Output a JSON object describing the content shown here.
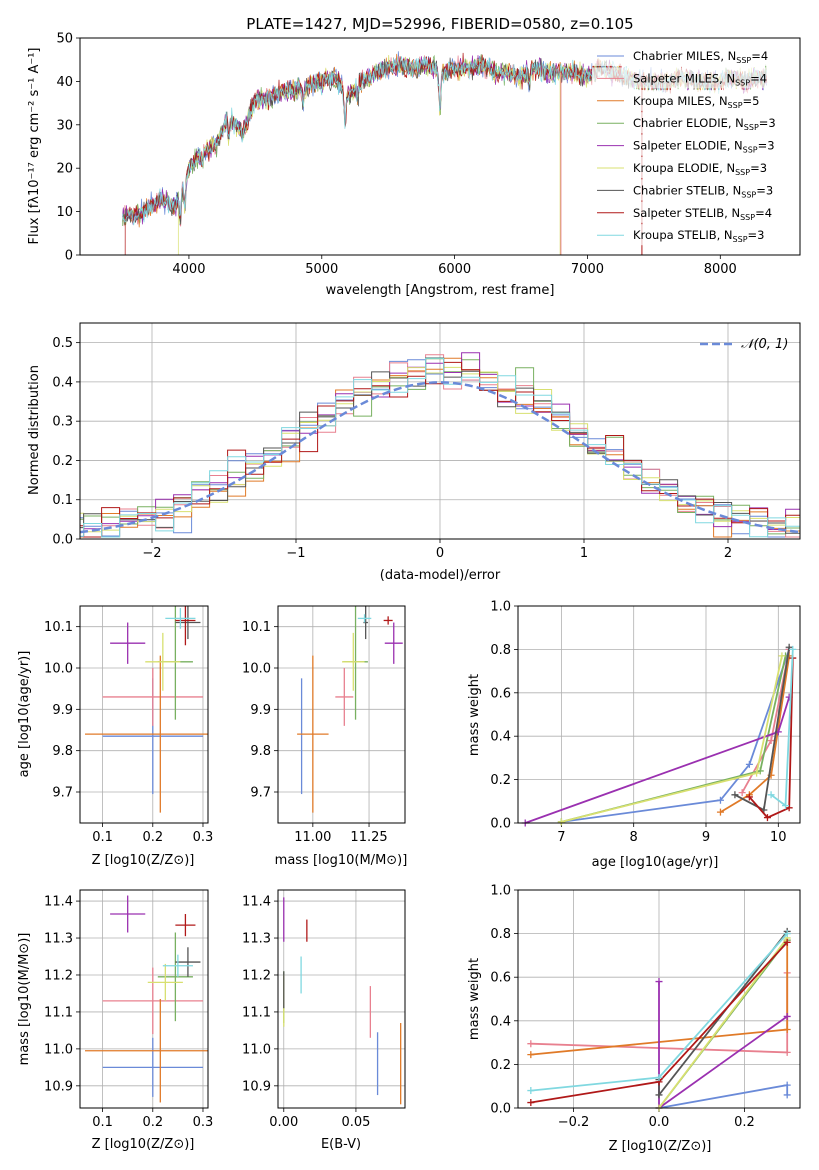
{
  "colors": {
    "Chabrier MILES": "#6a8ad8",
    "Salpeter MILES": "#e8808f",
    "Kroupa MILES": "#e07a28",
    "Chabrier ELODIE": "#78b060",
    "Salpeter ELODIE": "#9a30b0",
    "Kroupa ELODIE": "#d8e070",
    "Chabrier STELIB": "#555555",
    "Salpeter STELIB": "#b01818",
    "Kroupa STELIB": "#80d8e0"
  },
  "chart_data": [
    {
      "id": "spectrum",
      "type": "line",
      "title": "PLATE=1427, MJD=52996, FIBERID=0580, z=0.105",
      "xlabel": "wavelength [Angstrom, rest frame]",
      "ylabel": "Flux [fλ10⁻¹⁷ erg cm⁻² s⁻¹ A⁻¹]",
      "xlim": [
        3180,
        8600
      ],
      "ylim": [
        0,
        50
      ],
      "xticks": [
        4000,
        5000,
        6000,
        7000,
        8000
      ],
      "yticks": [
        0,
        10,
        20,
        30,
        40,
        50
      ],
      "legend": [
        {
          "name": "Chabrier MILES",
          "nssp": "4"
        },
        {
          "name": "Salpeter MILES",
          "nssp": "4"
        },
        {
          "name": "Kroupa MILES",
          "nssp": "5"
        },
        {
          "name": "Chabrier ELODIE",
          "nssp": "3"
        },
        {
          "name": "Salpeter ELODIE",
          "nssp": "3"
        },
        {
          "name": "Kroupa ELODIE",
          "nssp": "3"
        },
        {
          "name": "Chabrier STELIB",
          "nssp": "3"
        },
        {
          "name": "Salpeter STELIB",
          "nssp": "4"
        },
        {
          "name": "Kroupa STELIB",
          "nssp": "3"
        }
      ],
      "legend_placement": "right",
      "data_envelope": {
        "x": [
          3500,
          3600,
          3700,
          3800,
          3900,
          4000,
          4100,
          4200,
          4300,
          4400,
          4500,
          4600,
          4700,
          4800,
          4900,
          5000,
          5100,
          5200,
          5300,
          5400,
          5500,
          5600,
          5700,
          5800,
          5900,
          6000,
          6100,
          6200,
          6300,
          6400,
          6500,
          6600,
          6700,
          6800,
          6900,
          7000,
          7100,
          7200,
          7300,
          7400,
          7500,
          7600,
          7700,
          7800,
          7900,
          8000,
          8100,
          8200,
          8300
        ],
        "y": [
          9,
          9,
          11,
          13,
          11,
          20,
          24,
          25,
          32,
          28,
          36,
          36,
          38,
          38,
          39,
          40,
          41,
          37,
          40,
          42,
          43,
          44,
          43,
          44,
          42,
          43,
          43,
          44,
          42,
          42,
          41,
          43,
          42,
          42,
          42,
          41,
          43,
          42,
          41,
          40,
          40,
          40,
          41,
          40,
          40,
          40,
          41,
          40,
          41
        ]
      }
    },
    {
      "id": "residuals",
      "type": "step",
      "xlabel": "(data-model)/error",
      "ylabel": "Normed distribution",
      "xlim": [
        -2.5,
        2.5
      ],
      "ylim": [
        0,
        0.55
      ],
      "xticks": [
        -2,
        -1,
        0,
        1,
        2
      ],
      "yticks": [
        0.0,
        0.1,
        0.2,
        0.3,
        0.4,
        0.5
      ],
      "legend": "𝒩(0, 1)",
      "legend_placement": "top-right",
      "grid": true
    },
    {
      "id": "age_vs_Z",
      "type": "errorbar",
      "xlabel": "Z [log10(Z/Z⊙)]",
      "ylabel": "age [log10(age/yr)]",
      "xlim": [
        0.055,
        0.31
      ],
      "ylim": [
        9.625,
        10.15
      ],
      "xticks": [
        0.1,
        0.2,
        0.3
      ],
      "yticks": [
        9.7,
        9.8,
        9.9,
        10.0,
        10.1
      ],
      "points": [
        {
          "model": "Chabrier MILES",
          "x": 0.2,
          "xerr": 0.1,
          "y": 9.835,
          "yerr": 0.14
        },
        {
          "model": "Salpeter MILES",
          "x": 0.2,
          "xerr": 0.1,
          "y": 9.93,
          "yerr": 0.07
        },
        {
          "model": "Kroupa MILES",
          "x": 0.215,
          "xerr": 0.15,
          "y": 9.84,
          "yerr": 0.19
        },
        {
          "model": "Chabrier ELODIE",
          "x": 0.245,
          "xerr": 0.035,
          "y": 10.015,
          "yerr": 0.14
        },
        {
          "model": "Salpeter ELODIE",
          "x": 0.15,
          "xerr": 0.035,
          "y": 10.06,
          "yerr": 0.05
        },
        {
          "model": "Kroupa ELODIE",
          "x": 0.22,
          "xerr": 0.035,
          "y": 10.015,
          "yerr": 0.07
        },
        {
          "model": "Chabrier STELIB",
          "x": 0.27,
          "xerr": 0.025,
          "y": 10.11,
          "yerr": 0.04
        },
        {
          "model": "Salpeter STELIB",
          "x": 0.265,
          "xerr": 0.02,
          "y": 10.115,
          "yerr": 0.06
        },
        {
          "model": "Kroupa STELIB",
          "x": 0.255,
          "xerr": 0.03,
          "y": 10.12,
          "yerr": 0.025
        }
      ]
    },
    {
      "id": "age_vs_mass",
      "type": "errorbar",
      "xlabel": "mass [log10(M/M⊙)]",
      "xlim": [
        10.845,
        11.41
      ],
      "ylim": [
        9.625,
        10.15
      ],
      "xticks": [
        11.0,
        11.25
      ],
      "yticks": [
        9.7,
        9.8,
        9.9,
        10.0,
        10.1
      ],
      "points": [
        {
          "model": "Chabrier MILES",
          "x": 10.95,
          "xerr": 0.0,
          "y": 9.835,
          "yerr": 0.14
        },
        {
          "model": "Salpeter MILES",
          "x": 11.14,
          "xerr": 0.04,
          "y": 9.93,
          "yerr": 0.07
        },
        {
          "model": "Kroupa MILES",
          "x": 11.0,
          "xerr": 0.07,
          "y": 9.84,
          "yerr": 0.19
        },
        {
          "model": "Chabrier ELODIE",
          "x": 11.19,
          "xerr": 0.055,
          "y": 10.015,
          "yerr": 0.14
        },
        {
          "model": "Salpeter ELODIE",
          "x": 11.36,
          "xerr": 0.04,
          "y": 10.06,
          "yerr": 0.05
        },
        {
          "model": "Kroupa ELODIE",
          "x": 11.18,
          "xerr": 0.05,
          "y": 10.015,
          "yerr": 0.07
        },
        {
          "model": "Chabrier STELIB",
          "x": 11.235,
          "xerr": 0.01,
          "y": 10.11,
          "yerr": 0.04
        },
        {
          "model": "Salpeter STELIB",
          "x": 11.335,
          "xerr": 0.02,
          "y": 10.115,
          "yerr": 0.01
        },
        {
          "model": "Kroupa STELIB",
          "x": 11.23,
          "xerr": 0.03,
          "y": 10.12,
          "yerr": 0.01
        }
      ]
    },
    {
      "id": "weight_vs_age",
      "type": "line",
      "xlabel": "age [log10(age/yr)]",
      "ylabel": "mass weight",
      "xlim": [
        6.4,
        10.3
      ],
      "ylim": [
        0,
        1.0
      ],
      "xticks": [
        7,
        8,
        9,
        10
      ],
      "yticks": [
        0.0,
        0.2,
        0.4,
        0.6,
        0.8,
        1.0
      ],
      "grid": true,
      "series": [
        {
          "model": "Chabrier MILES",
          "x": [
            7.0,
            9.2,
            9.6,
            10.15
          ],
          "y": [
            0.005,
            0.105,
            0.27,
            0.8
          ]
        },
        {
          "model": "Salpeter MILES",
          "x": [
            9.5,
            9.9,
            10.15
          ],
          "y": [
            0.14,
            0.38,
            0.8
          ]
        },
        {
          "model": "Kroupa MILES",
          "x": [
            9.2,
            9.6,
            9.9,
            10.15
          ],
          "y": [
            0.05,
            0.13,
            0.22,
            0.77
          ]
        },
        {
          "model": "Chabrier ELODIE",
          "x": [
            7.0,
            9.75,
            10.1
          ],
          "y": [
            0.005,
            0.24,
            0.77
          ]
        },
        {
          "model": "Salpeter ELODIE",
          "x": [
            6.5,
            10.0,
            10.15
          ],
          "y": [
            0.0,
            0.42,
            0.58
          ]
        },
        {
          "model": "Kroupa ELODIE",
          "x": [
            7.0,
            9.7,
            10.05
          ],
          "y": [
            0.005,
            0.23,
            0.77
          ]
        },
        {
          "model": "Chabrier STELIB",
          "x": [
            9.4,
            9.8,
            10.15
          ],
          "y": [
            0.13,
            0.06,
            0.81
          ]
        },
        {
          "model": "Salpeter STELIB",
          "x": [
            9.6,
            9.85,
            10.15,
            10.2
          ],
          "y": [
            0.12,
            0.025,
            0.07,
            0.76
          ]
        },
        {
          "model": "Kroupa STELIB",
          "x": [
            9.9,
            10.1,
            10.2
          ],
          "y": [
            0.13,
            0.08,
            0.8
          ]
        }
      ]
    },
    {
      "id": "mass_vs_Z",
      "type": "errorbar",
      "xlabel": "Z [log10(Z/Z⊙)]",
      "ylabel": "mass [log10(M/M⊙)]",
      "xlim": [
        0.055,
        0.31
      ],
      "ylim": [
        10.84,
        11.43
      ],
      "xticks": [
        0.1,
        0.2,
        0.3
      ],
      "yticks": [
        10.9,
        11.0,
        11.1,
        11.2,
        11.3,
        11.4
      ],
      "points": [
        {
          "model": "Chabrier MILES",
          "x": 0.2,
          "xerr": 0.1,
          "y": 10.95,
          "yerr": 0.08
        },
        {
          "model": "Salpeter MILES",
          "x": 0.2,
          "xerr": 0.1,
          "y": 11.13,
          "yerr": 0.09
        },
        {
          "model": "Kroupa MILES",
          "x": 0.215,
          "xerr": 0.15,
          "y": 10.995,
          "yerr": 0.14
        },
        {
          "model": "Chabrier ELODIE",
          "x": 0.245,
          "xerr": 0.035,
          "y": 11.195,
          "yerr": 0.12
        },
        {
          "model": "Salpeter ELODIE",
          "x": 0.15,
          "xerr": 0.035,
          "y": 11.365,
          "yerr": 0.05
        },
        {
          "model": "Kroupa ELODIE",
          "x": 0.225,
          "xerr": 0.035,
          "y": 11.18,
          "yerr": 0.05
        },
        {
          "model": "Chabrier STELIB",
          "x": 0.27,
          "xerr": 0.025,
          "y": 11.235,
          "yerr": 0.04
        },
        {
          "model": "Salpeter STELIB",
          "x": 0.265,
          "xerr": 0.02,
          "y": 11.335,
          "yerr": 0.03
        },
        {
          "model": "Kroupa STELIB",
          "x": 0.25,
          "xerr": 0.03,
          "y": 11.225,
          "yerr": 0.03
        }
      ]
    },
    {
      "id": "mass_vs_EBV",
      "type": "errorbar",
      "xlabel": "E(B-V)",
      "xlim": [
        -0.004,
        0.084
      ],
      "ylim": [
        10.84,
        11.43
      ],
      "xticks": [
        0.0,
        0.05
      ],
      "yticks": [
        10.9,
        11.0,
        11.1,
        11.2,
        11.3,
        11.4
      ],
      "points": [
        {
          "model": "Chabrier MILES",
          "x": 0.065,
          "xerr": 0,
          "y": 10.96,
          "yerr": 0.085
        },
        {
          "model": "Salpeter MILES",
          "x": 0.06,
          "xerr": 0,
          "y": 11.1,
          "yerr": 0.07
        },
        {
          "model": "Kroupa MILES",
          "x": 0.081,
          "xerr": 0,
          "y": 10.96,
          "yerr": 0.11
        },
        {
          "model": "Chabrier ELODIE",
          "x": 0.0,
          "xerr": 0,
          "y": 11.14,
          "yerr": 0.07
        },
        {
          "model": "Salpeter ELODIE",
          "x": 0.0,
          "xerr": 0,
          "y": 11.35,
          "yerr": 0.06
        },
        {
          "model": "Kroupa ELODIE",
          "x": 0.0,
          "xerr": 0,
          "y": 11.13,
          "yerr": 0.07
        },
        {
          "model": "Chabrier STELIB",
          "x": 0.0,
          "xerr": 0,
          "y": 11.16,
          "yerr": 0.05
        },
        {
          "model": "Salpeter STELIB",
          "x": 0.016,
          "xerr": 0,
          "y": 11.32,
          "yerr": 0.03
        },
        {
          "model": "Kroupa STELIB",
          "x": 0.012,
          "xerr": 0,
          "y": 11.2,
          "yerr": 0.05
        }
      ]
    },
    {
      "id": "weight_vs_Z",
      "type": "line",
      "xlabel": "Z [log10(Z/Z⊙)]",
      "ylabel": "mass weight",
      "xlim": [
        -0.33,
        0.33
      ],
      "ylim": [
        0,
        1.0
      ],
      "xticks": [
        -0.2,
        0.0,
        0.2
      ],
      "yticks": [
        0.0,
        0.2,
        0.4,
        0.6,
        0.8,
        1.0
      ],
      "grid": true,
      "series": [
        {
          "model": "Chabrier MILES",
          "x": [
            0.0,
            0.3,
            0.3
          ],
          "y": [
            0.0,
            0.105,
            0.06
          ]
        },
        {
          "model": "Salpeter MILES",
          "x": [
            -0.3,
            0.3,
            0.3
          ],
          "y": [
            0.295,
            0.255,
            0.62
          ]
        },
        {
          "model": "Kroupa MILES",
          "x": [
            -0.3,
            0.3,
            0.3
          ],
          "y": [
            0.245,
            0.36,
            0.77
          ]
        },
        {
          "model": "Chabrier ELODIE",
          "x": [
            0.0,
            0.3
          ],
          "y": [
            0.0,
            0.77
          ]
        },
        {
          "model": "Salpeter ELODIE",
          "x": [
            0.0,
            0.0,
            0.3
          ],
          "y": [
            0.58,
            0.0,
            0.42
          ]
        },
        {
          "model": "Kroupa ELODIE",
          "x": [
            0.0,
            0.3
          ],
          "y": [
            0.0,
            0.78
          ]
        },
        {
          "model": "Chabrier STELIB",
          "x": [
            0.0,
            0.0,
            0.3
          ],
          "y": [
            0.13,
            0.06,
            0.81
          ]
        },
        {
          "model": "Salpeter STELIB",
          "x": [
            -0.3,
            0.0,
            0.3
          ],
          "y": [
            0.025,
            0.12,
            0.76
          ]
        },
        {
          "model": "Kroupa STELIB",
          "x": [
            -0.3,
            0.0,
            0.3
          ],
          "y": [
            0.08,
            0.14,
            0.8
          ]
        }
      ]
    }
  ]
}
